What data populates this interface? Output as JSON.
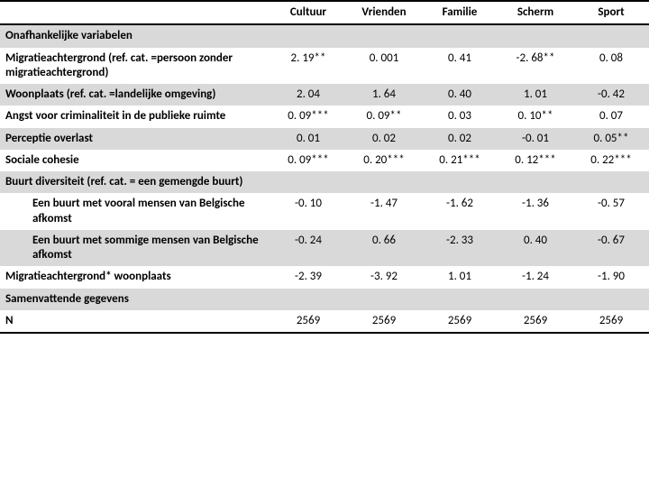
{
  "table": {
    "columns": [
      "Cultuur",
      "Vrienden",
      "Familie",
      "Scherm",
      "Sport"
    ],
    "column_fontsize": 13,
    "header_bg": "#ffffff",
    "shade_bg": "#d9d9d9",
    "border_color": "#000000",
    "rows": [
      {
        "label": "Onafhankelijke variabelen",
        "values": [
          "",
          "",
          "",
          "",
          ""
        ],
        "shade": true,
        "bold": true,
        "indent": false
      },
      {
        "label": "Migratieachtergrond (ref. cat. =persoon zonder migratieachtergrond)",
        "values": [
          "2. 19**",
          "0. 001",
          "0. 41",
          "-2. 68**",
          "0. 08"
        ],
        "shade": false,
        "bold": true,
        "indent": false
      },
      {
        "label": "Woonplaats (ref. cat. =landelijke omgeving)",
        "values": [
          "2. 04",
          "1. 64",
          "0. 40",
          "1. 01",
          "-0. 42"
        ],
        "shade": true,
        "bold": true,
        "indent": false
      },
      {
        "label": "Angst voor criminaliteit in de publieke ruimte",
        "values": [
          "0. 09***",
          "0. 09**",
          "0. 03",
          "0. 10**",
          "0. 07"
        ],
        "shade": false,
        "bold": true,
        "indent": false
      },
      {
        "label": "Perceptie overlast",
        "values": [
          "0. 01",
          "0. 02",
          "0. 02",
          "-0. 01",
          "0. 05**"
        ],
        "shade": true,
        "bold": true,
        "indent": false
      },
      {
        "label": "Sociale cohesie",
        "values": [
          "0. 09***",
          "0. 20***",
          "0. 21***",
          "0. 12***",
          "0. 22***"
        ],
        "shade": false,
        "bold": true,
        "indent": false
      },
      {
        "label": "Buurt diversiteit (ref. cat. = een gemengde buurt)",
        "values": [
          "",
          "",
          "",
          "",
          ""
        ],
        "shade": true,
        "bold": true,
        "indent": false
      },
      {
        "label": "Een buurt met vooral mensen van Belgische afkomst",
        "values": [
          "-0. 10",
          "-1. 47",
          "-1. 62",
          "-1. 36",
          "-0. 57"
        ],
        "shade": false,
        "bold": true,
        "indent": true
      },
      {
        "label": "Een buurt met sommige mensen van Belgische afkomst",
        "values": [
          "-0. 24",
          "0. 66",
          "-2. 33",
          "0. 40",
          "-0. 67"
        ],
        "shade": true,
        "bold": true,
        "indent": true
      },
      {
        "label": "Migratieachtergrond* woonplaats",
        "values": [
          "-2. 39",
          "-3. 92",
          "1. 01",
          "-1. 24",
          "-1. 90"
        ],
        "shade": false,
        "bold": true,
        "indent": false
      },
      {
        "label": "Samenvattende gegevens",
        "values": [
          "",
          "",
          "",
          "",
          ""
        ],
        "shade": true,
        "bold": true,
        "indent": false
      },
      {
        "label": "N",
        "values": [
          "2569",
          "2569",
          "2569",
          "2569",
          "2569"
        ],
        "shade": false,
        "bold": true,
        "indent": false,
        "bottom": true
      }
    ]
  }
}
